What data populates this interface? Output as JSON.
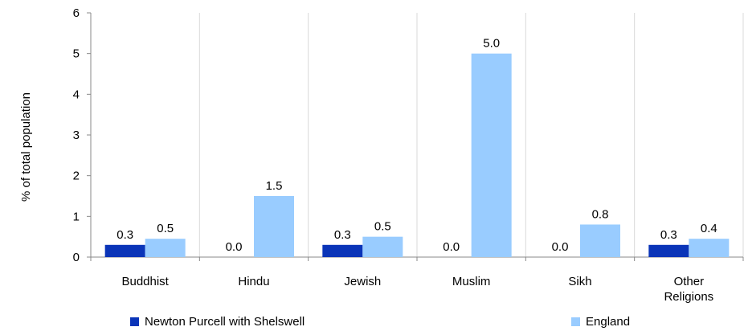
{
  "chart_data": {
    "type": "bar",
    "categories": [
      "Buddhist",
      "Hindu",
      "Jewish",
      "Muslim",
      "Sikh",
      "Other Religions"
    ],
    "series": [
      {
        "name": "Newton Purcell with Shelswell",
        "values": [
          0.3,
          0.0,
          0.3,
          0.0,
          0.0,
          0.3
        ],
        "labels": [
          "0.3",
          "0.0",
          "0.3",
          "0.0",
          "0.0",
          "0.3"
        ],
        "color": "#0a34b8"
      },
      {
        "name": "England",
        "values": [
          0.45,
          1.5,
          0.5,
          5.0,
          0.8,
          0.45
        ],
        "labels": [
          "0.5",
          "1.5",
          "0.5",
          "5.0",
          "0.8",
          "0.4"
        ],
        "color": "#99ccff"
      }
    ],
    "title": "",
    "xlabel": "",
    "ylabel": "% of total population",
    "ylim": [
      0,
      6
    ],
    "yticks": [
      "0",
      "1",
      "2",
      "3",
      "4",
      "5",
      "6"
    ],
    "grid": "vertical-category-separators",
    "legend_position": "bottom"
  }
}
